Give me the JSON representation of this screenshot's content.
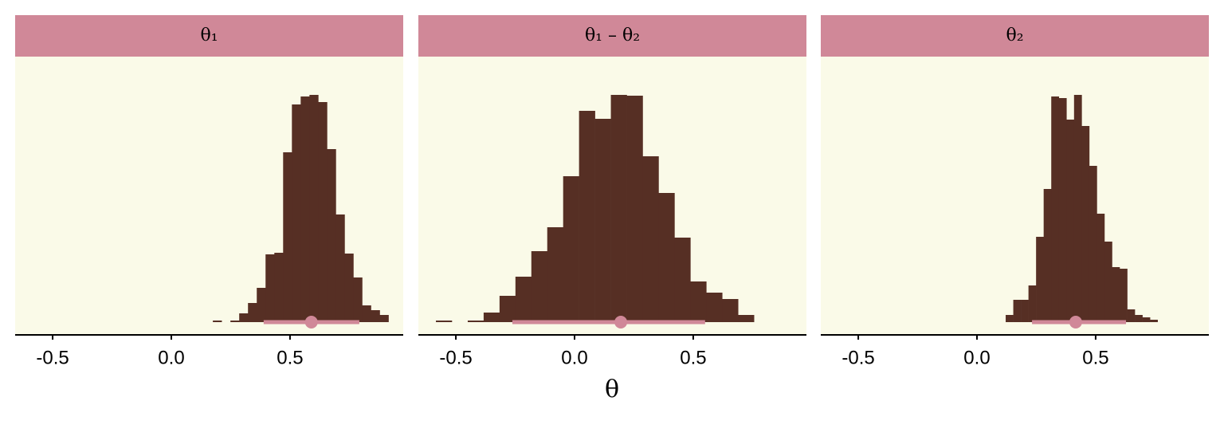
{
  "xlabel": "θ",
  "chart_data": [
    {
      "type": "histogram",
      "title": "θ₁",
      "bins": [
        0.175,
        0.212,
        0.249,
        0.286,
        0.323,
        0.36,
        0.397,
        0.434,
        0.471,
        0.508,
        0.545,
        0.582,
        0.619,
        0.656,
        0.693,
        0.73,
        0.767,
        0.804,
        0.841,
        0.878,
        0.915
      ],
      "counts": [
        2,
        0,
        2,
        11,
        24,
        43,
        85,
        87,
        213,
        273,
        283,
        285,
        276,
        217,
        135,
        86,
        56,
        21,
        15,
        9
      ],
      "interval": [
        0.389,
        0.792
      ],
      "point": 0.59,
      "xlim": [
        -0.658,
        0.977
      ],
      "xticks": [
        -0.5,
        {
          "value": 0,
          "label": "0.0"
        },
        0.5
      ],
      "ylim": [
        -15,
        333
      ],
      "color": "#562f24",
      "interval_color": "#d08898",
      "strip_color": "#d08898",
      "panel_color": "#fafae8"
    },
    {
      "type": "histogram",
      "title": "θ₁ – θ₂",
      "bins": [
        -0.584,
        -0.517,
        -0.45,
        -0.383,
        -0.316,
        -0.249,
        -0.182,
        -0.115,
        -0.048,
        0.019,
        0.086,
        0.153,
        0.22,
        0.287,
        0.354,
        0.421,
        0.488,
        0.555,
        0.622,
        0.689,
        0.756
      ],
      "counts": [
        2,
        0,
        2,
        12,
        33,
        57,
        89,
        119,
        183,
        265,
        255,
        285,
        284,
        208,
        162,
        106,
        51,
        37,
        29,
        9
      ],
      "interval": [
        -0.262,
        0.55
      ],
      "point": 0.195,
      "xlim": [
        -0.658,
        0.977
      ],
      "xticks": [
        -0.5,
        {
          "value": 0,
          "label": "0.0"
        },
        0.5
      ],
      "ylim": [
        -15,
        333
      ],
      "color": "#562f24",
      "interval_color": "#d08898",
      "strip_color": "#d08898",
      "panel_color": "#fafae8"
    },
    {
      "type": "histogram",
      "title": "θ₂",
      "bins": [
        0.121,
        0.153,
        0.185,
        0.217,
        0.249,
        0.281,
        0.313,
        0.345,
        0.377,
        0.409,
        0.441,
        0.473,
        0.505,
        0.537,
        0.569,
        0.601,
        0.633,
        0.665,
        0.697,
        0.729,
        0.761
      ],
      "counts": [
        9,
        28,
        28,
        46,
        107,
        167,
        283,
        281,
        254,
        285,
        246,
        196,
        136,
        101,
        69,
        67,
        16,
        9,
        6,
        3
      ],
      "interval": [
        0.232,
        0.628
      ],
      "point": 0.416,
      "xlim": [
        -0.658,
        0.977
      ],
      "xticks": [
        -0.5,
        {
          "value": 0,
          "label": "0.0"
        },
        0.5
      ],
      "ylim": [
        -15,
        333
      ],
      "color": "#562f24",
      "interval_color": "#d08898",
      "strip_color": "#d08898",
      "panel_color": "#fafae8"
    }
  ]
}
